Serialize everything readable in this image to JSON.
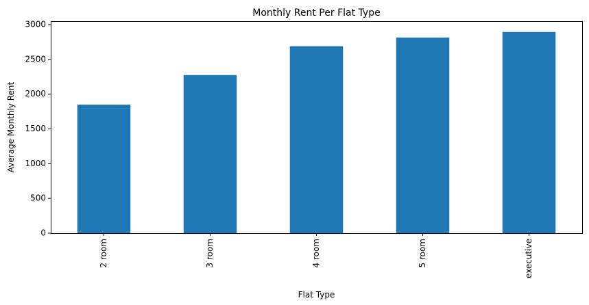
{
  "chart_data": {
    "type": "bar",
    "title": "Monthly Rent Per Flat Type",
    "xlabel": "Flat Type",
    "ylabel": "Average Monthly Rent",
    "categories": [
      "2 room",
      "3 room",
      "4 room",
      "5 room",
      "executive"
    ],
    "values": [
      1850,
      2275,
      2690,
      2815,
      2895
    ],
    "ylim": [
      0,
      3050
    ],
    "yticks": [
      0,
      500,
      1000,
      1500,
      2000,
      2500,
      3000
    ],
    "ytick_labels": [
      "0",
      "500",
      "1000",
      "1500",
      "2000",
      "2500",
      "3000"
    ],
    "bar_color": "#1f77b4",
    "grid": false,
    "xtick_rotation": "vertical"
  }
}
